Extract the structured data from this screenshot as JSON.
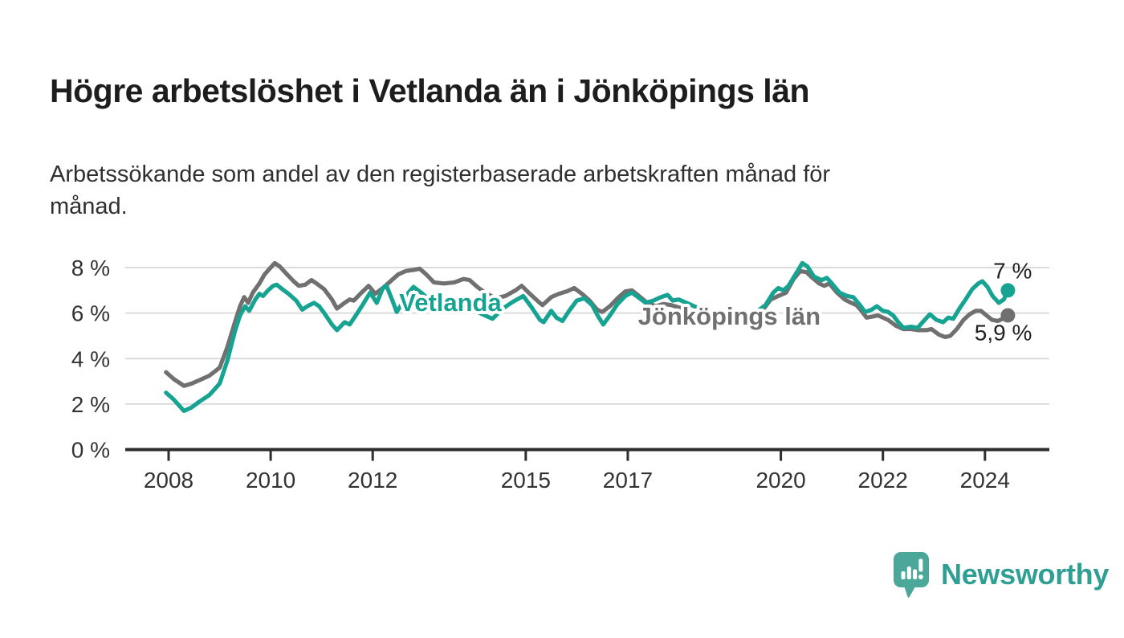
{
  "header": {
    "title": "Högre arbetslöshet i Vetlanda än i Jönköpings län",
    "subtitle": "Arbetssökande som andel av den registerbaserade arbetskraften månad för\nmånad."
  },
  "footer": {
    "brand": "Newsworthy",
    "logo_icon": "speech-bubble-bar-chart",
    "brand_color": "#2f9f93",
    "icon_color": "#4aa79a"
  },
  "chart_data": {
    "type": "line",
    "title": "Högre arbetslöshet i Vetlanda än i Jönköpings län",
    "subtitle": "Arbetssökande som andel av den registerbaserade arbetskraften månad för månad.",
    "unit": "%",
    "xlim": [
      2007.7,
      2025.3
    ],
    "ylim": [
      0,
      8.8
    ],
    "grid": true,
    "x_ticks": [
      2008,
      2010,
      2012,
      2015,
      2017,
      2020,
      2022,
      2024
    ],
    "y_ticks": [
      0,
      2,
      4,
      6,
      8
    ],
    "y_tick_suffix": " %",
    "legend_position": "inline-labels",
    "colors": {
      "grid": "#dcdcdc",
      "axis": "#2e2e2e",
      "tick_text": "#333333",
      "end_label_text": "#222222"
    },
    "series": [
      {
        "name": "Vetlanda",
        "color": "#17a392",
        "end_label": "7 %",
        "end_value": 7.0,
        "end_label_position": "above",
        "label_anchor": {
          "x": 2012.52,
          "y": 6.1
        },
        "points": [
          [
            2007.95,
            2.5
          ],
          [
            2008.1,
            2.2
          ],
          [
            2008.3,
            1.7
          ],
          [
            2008.45,
            1.85
          ],
          [
            2008.6,
            2.1
          ],
          [
            2008.8,
            2.4
          ],
          [
            2009.0,
            2.9
          ],
          [
            2009.15,
            3.9
          ],
          [
            2009.3,
            5.2
          ],
          [
            2009.4,
            5.9
          ],
          [
            2009.5,
            6.3
          ],
          [
            2009.58,
            6.1
          ],
          [
            2009.7,
            6.6
          ],
          [
            2009.78,
            6.85
          ],
          [
            2009.85,
            6.75
          ],
          [
            2009.95,
            7.0
          ],
          [
            2010.05,
            7.2
          ],
          [
            2010.12,
            7.25
          ],
          [
            2010.2,
            7.1
          ],
          [
            2010.35,
            6.85
          ],
          [
            2010.5,
            6.55
          ],
          [
            2010.62,
            6.15
          ],
          [
            2010.72,
            6.3
          ],
          [
            2010.85,
            6.45
          ],
          [
            2010.95,
            6.3
          ],
          [
            2011.05,
            6.0
          ],
          [
            2011.2,
            5.5
          ],
          [
            2011.3,
            5.25
          ],
          [
            2011.45,
            5.6
          ],
          [
            2011.55,
            5.5
          ],
          [
            2011.67,
            5.9
          ],
          [
            2011.8,
            6.35
          ],
          [
            2011.95,
            6.9
          ],
          [
            2012.08,
            6.45
          ],
          [
            2012.2,
            7.1
          ],
          [
            2012.27,
            7.2
          ],
          [
            2012.38,
            6.6
          ],
          [
            2012.47,
            6.05
          ],
          [
            2012.6,
            6.5
          ],
          [
            2012.7,
            6.9
          ],
          [
            2012.8,
            7.15
          ],
          [
            2012.95,
            6.9
          ],
          [
            2013.1,
            6.6
          ],
          [
            2013.3,
            6.2
          ],
          [
            2013.5,
            6.35
          ],
          [
            2013.7,
            6.5
          ],
          [
            2013.85,
            6.3
          ],
          [
            2014.0,
            6.1
          ],
          [
            2014.2,
            5.9
          ],
          [
            2014.35,
            5.75
          ],
          [
            2014.55,
            6.2
          ],
          [
            2014.75,
            6.5
          ],
          [
            2014.95,
            6.75
          ],
          [
            2015.1,
            6.3
          ],
          [
            2015.28,
            5.7
          ],
          [
            2015.35,
            5.6
          ],
          [
            2015.5,
            6.1
          ],
          [
            2015.6,
            5.8
          ],
          [
            2015.72,
            5.65
          ],
          [
            2015.85,
            6.1
          ],
          [
            2016.0,
            6.55
          ],
          [
            2016.15,
            6.65
          ],
          [
            2016.3,
            6.35
          ],
          [
            2016.42,
            5.85
          ],
          [
            2016.52,
            5.5
          ],
          [
            2016.65,
            5.9
          ],
          [
            2016.8,
            6.4
          ],
          [
            2016.95,
            6.75
          ],
          [
            2017.08,
            6.9
          ],
          [
            2017.2,
            6.7
          ],
          [
            2017.35,
            6.45
          ],
          [
            2017.5,
            6.55
          ],
          [
            2017.65,
            6.7
          ],
          [
            2017.78,
            6.8
          ],
          [
            2017.88,
            6.55
          ],
          [
            2018.0,
            6.6
          ],
          [
            2018.2,
            6.4
          ],
          [
            2018.4,
            6.2
          ],
          [
            2018.6,
            6.05
          ],
          [
            2018.8,
            5.95
          ],
          [
            2019.0,
            5.85
          ],
          [
            2019.2,
            5.8
          ],
          [
            2019.4,
            5.95
          ],
          [
            2019.55,
            6.1
          ],
          [
            2019.7,
            6.35
          ],
          [
            2019.85,
            6.9
          ],
          [
            2019.95,
            7.1
          ],
          [
            2020.05,
            7.0
          ],
          [
            2020.15,
            7.2
          ],
          [
            2020.3,
            7.75
          ],
          [
            2020.42,
            8.2
          ],
          [
            2020.52,
            8.05
          ],
          [
            2020.65,
            7.6
          ],
          [
            2020.8,
            7.45
          ],
          [
            2020.9,
            7.55
          ],
          [
            2021.0,
            7.3
          ],
          [
            2021.15,
            6.9
          ],
          [
            2021.3,
            6.75
          ],
          [
            2021.42,
            6.7
          ],
          [
            2021.55,
            6.35
          ],
          [
            2021.65,
            6.05
          ],
          [
            2021.78,
            6.15
          ],
          [
            2021.88,
            6.3
          ],
          [
            2022.0,
            6.1
          ],
          [
            2022.1,
            6.05
          ],
          [
            2022.2,
            5.9
          ],
          [
            2022.3,
            5.6
          ],
          [
            2022.4,
            5.35
          ],
          [
            2022.55,
            5.4
          ],
          [
            2022.68,
            5.35
          ],
          [
            2022.8,
            5.65
          ],
          [
            2022.92,
            5.95
          ],
          [
            2023.05,
            5.7
          ],
          [
            2023.18,
            5.6
          ],
          [
            2023.28,
            5.8
          ],
          [
            2023.38,
            5.75
          ],
          [
            2023.5,
            6.2
          ],
          [
            2023.62,
            6.6
          ],
          [
            2023.75,
            7.05
          ],
          [
            2023.87,
            7.3
          ],
          [
            2023.95,
            7.4
          ],
          [
            2024.05,
            7.15
          ],
          [
            2024.15,
            6.75
          ],
          [
            2024.27,
            6.45
          ],
          [
            2024.37,
            6.6
          ],
          [
            2024.45,
            7.0
          ]
        ]
      },
      {
        "name": "Jönköpings län",
        "color": "#707070",
        "end_label": "5,9 %",
        "end_value": 5.9,
        "end_label_position": "below",
        "label_anchor": {
          "x": 2017.2,
          "y": 5.5
        },
        "points": [
          [
            2007.95,
            3.4
          ],
          [
            2008.1,
            3.1
          ],
          [
            2008.3,
            2.8
          ],
          [
            2008.45,
            2.9
          ],
          [
            2008.6,
            3.05
          ],
          [
            2008.8,
            3.25
          ],
          [
            2009.0,
            3.6
          ],
          [
            2009.15,
            4.5
          ],
          [
            2009.3,
            5.6
          ],
          [
            2009.4,
            6.3
          ],
          [
            2009.48,
            6.7
          ],
          [
            2009.56,
            6.45
          ],
          [
            2009.65,
            6.9
          ],
          [
            2009.78,
            7.3
          ],
          [
            2009.88,
            7.7
          ],
          [
            2010.0,
            8.0
          ],
          [
            2010.08,
            8.2
          ],
          [
            2010.18,
            8.05
          ],
          [
            2010.3,
            7.75
          ],
          [
            2010.45,
            7.4
          ],
          [
            2010.55,
            7.2
          ],
          [
            2010.68,
            7.25
          ],
          [
            2010.8,
            7.45
          ],
          [
            2010.9,
            7.3
          ],
          [
            2011.05,
            7.05
          ],
          [
            2011.2,
            6.6
          ],
          [
            2011.3,
            6.2
          ],
          [
            2011.45,
            6.45
          ],
          [
            2011.55,
            6.6
          ],
          [
            2011.63,
            6.55
          ],
          [
            2011.78,
            6.9
          ],
          [
            2011.92,
            7.2
          ],
          [
            2012.05,
            6.85
          ],
          [
            2012.2,
            7.1
          ],
          [
            2012.35,
            7.4
          ],
          [
            2012.5,
            7.7
          ],
          [
            2012.65,
            7.85
          ],
          [
            2012.8,
            7.9
          ],
          [
            2012.92,
            7.95
          ],
          [
            2013.05,
            7.7
          ],
          [
            2013.2,
            7.35
          ],
          [
            2013.4,
            7.3
          ],
          [
            2013.6,
            7.35
          ],
          [
            2013.78,
            7.5
          ],
          [
            2013.9,
            7.45
          ],
          [
            2014.05,
            7.15
          ],
          [
            2014.2,
            6.9
          ],
          [
            2014.4,
            6.65
          ],
          [
            2014.6,
            6.75
          ],
          [
            2014.8,
            7.0
          ],
          [
            2014.92,
            7.2
          ],
          [
            2015.08,
            6.85
          ],
          [
            2015.25,
            6.5
          ],
          [
            2015.33,
            6.35
          ],
          [
            2015.5,
            6.7
          ],
          [
            2015.65,
            6.85
          ],
          [
            2015.8,
            6.95
          ],
          [
            2015.95,
            7.1
          ],
          [
            2016.1,
            6.85
          ],
          [
            2016.25,
            6.55
          ],
          [
            2016.4,
            6.15
          ],
          [
            2016.5,
            6.05
          ],
          [
            2016.65,
            6.3
          ],
          [
            2016.8,
            6.65
          ],
          [
            2016.95,
            6.95
          ],
          [
            2017.08,
            7.0
          ],
          [
            2017.22,
            6.75
          ],
          [
            2017.38,
            6.45
          ],
          [
            2017.55,
            6.3
          ],
          [
            2017.7,
            6.4
          ],
          [
            2017.85,
            6.35
          ],
          [
            2018.0,
            6.25
          ],
          [
            2018.25,
            6.1
          ],
          [
            2018.5,
            5.9
          ],
          [
            2018.75,
            5.75
          ],
          [
            2019.0,
            5.6
          ],
          [
            2019.25,
            5.7
          ],
          [
            2019.45,
            5.85
          ],
          [
            2019.65,
            6.15
          ],
          [
            2019.8,
            6.6
          ],
          [
            2019.95,
            6.75
          ],
          [
            2020.1,
            6.9
          ],
          [
            2020.25,
            7.5
          ],
          [
            2020.38,
            7.85
          ],
          [
            2020.5,
            7.8
          ],
          [
            2020.62,
            7.55
          ],
          [
            2020.75,
            7.3
          ],
          [
            2020.85,
            7.2
          ],
          [
            2020.95,
            7.3
          ],
          [
            2021.1,
            6.9
          ],
          [
            2021.25,
            6.6
          ],
          [
            2021.38,
            6.45
          ],
          [
            2021.48,
            6.35
          ],
          [
            2021.58,
            6.1
          ],
          [
            2021.68,
            5.8
          ],
          [
            2021.8,
            5.85
          ],
          [
            2021.9,
            5.9
          ],
          [
            2022.0,
            5.8
          ],
          [
            2022.1,
            5.7
          ],
          [
            2022.25,
            5.45
          ],
          [
            2022.4,
            5.3
          ],
          [
            2022.55,
            5.3
          ],
          [
            2022.7,
            5.25
          ],
          [
            2022.85,
            5.25
          ],
          [
            2022.95,
            5.3
          ],
          [
            2023.1,
            5.05
          ],
          [
            2023.22,
            4.95
          ],
          [
            2023.32,
            5.0
          ],
          [
            2023.45,
            5.3
          ],
          [
            2023.58,
            5.7
          ],
          [
            2023.7,
            5.95
          ],
          [
            2023.82,
            6.1
          ],
          [
            2023.92,
            6.1
          ],
          [
            2024.03,
            5.9
          ],
          [
            2024.14,
            5.7
          ],
          [
            2024.25,
            5.65
          ],
          [
            2024.35,
            5.75
          ],
          [
            2024.45,
            5.9
          ]
        ]
      }
    ]
  }
}
